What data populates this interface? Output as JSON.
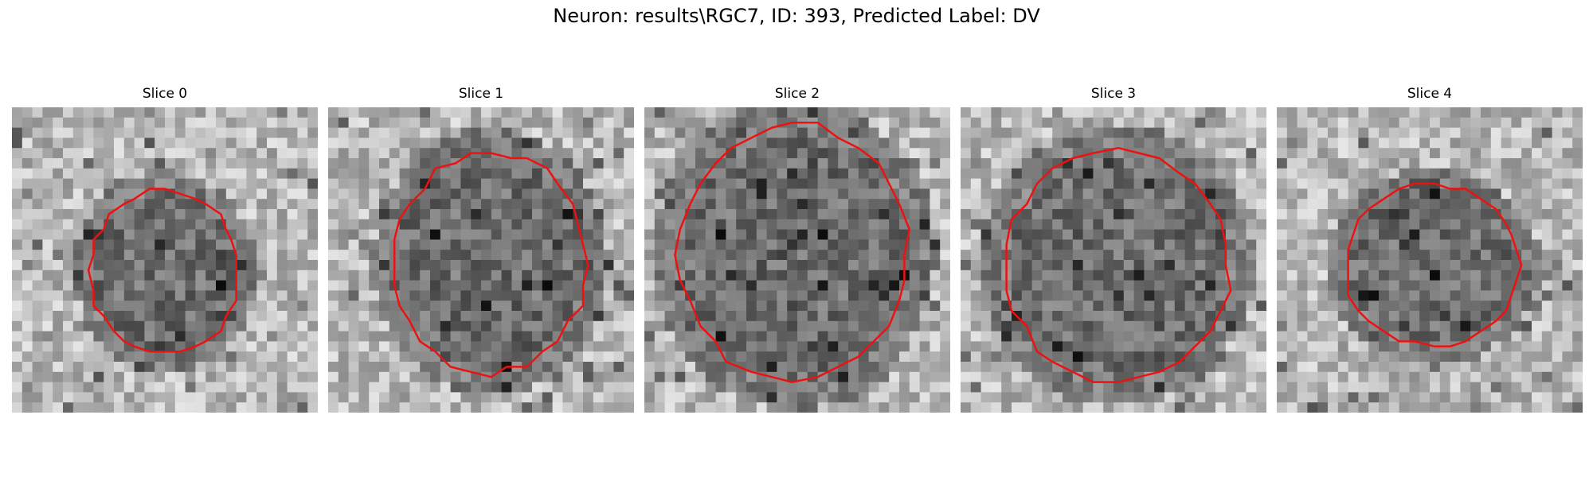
{
  "figure": {
    "title": "Neuron: results\\RGC7, ID: 393, Predicted Label: DV"
  },
  "colors": {
    "contour": "#ee1111",
    "background": "#ffffff"
  },
  "panels": [
    {
      "title": "Slice 0",
      "seed": 11,
      "center": [
        0.5,
        0.54
      ],
      "radius": [
        0.24,
        0.26
      ],
      "dark": 0.55
    },
    {
      "title": "Slice 1",
      "seed": 23,
      "center": [
        0.53,
        0.51
      ],
      "radius": [
        0.31,
        0.35
      ],
      "dark": 0.45
    },
    {
      "title": "Slice 2",
      "seed": 37,
      "center": [
        0.49,
        0.48
      ],
      "radius": [
        0.37,
        0.41
      ],
      "dark": 0.45
    },
    {
      "title": "Slice 3",
      "seed": 41,
      "center": [
        0.51,
        0.52
      ],
      "radius": [
        0.36,
        0.37
      ],
      "dark": 0.45
    },
    {
      "title": "Slice 4",
      "seed": 53,
      "center": [
        0.51,
        0.52
      ],
      "radius": [
        0.28,
        0.26
      ],
      "dark": 0.4
    }
  ]
}
